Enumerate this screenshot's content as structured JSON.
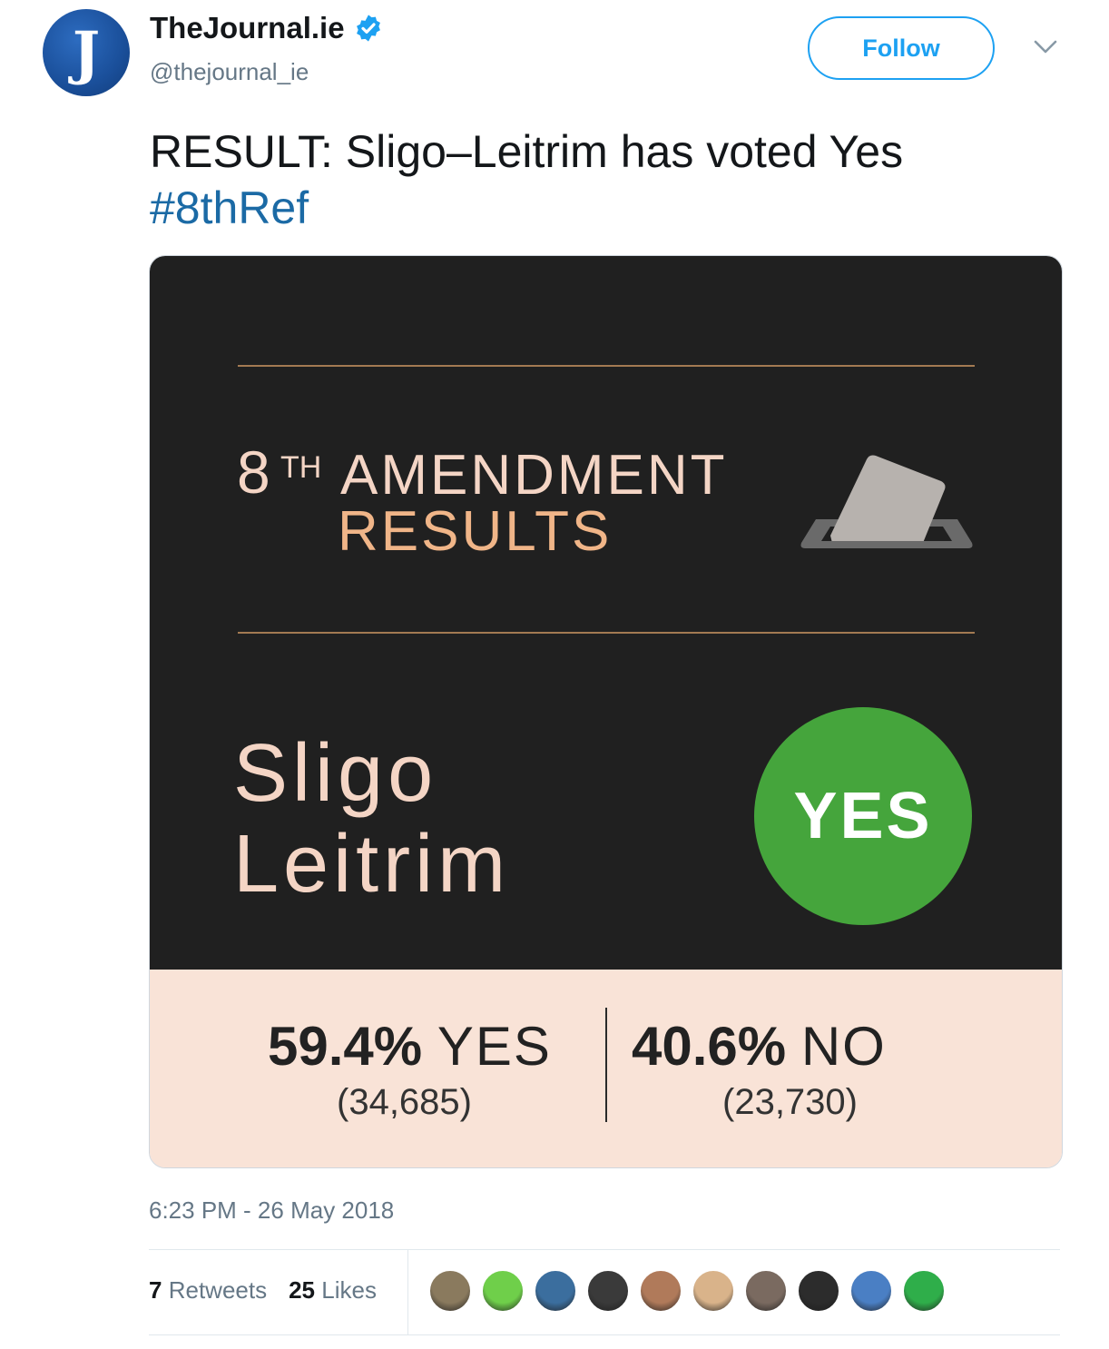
{
  "account": {
    "display_name": "TheJournal.ie",
    "handle": "@thejournal_ie",
    "avatar_letter": "J",
    "verified": true
  },
  "follow_button": {
    "label": "Follow"
  },
  "tweet": {
    "text": "RESULT: Sligo–Leitrim has voted Yes",
    "hashtag": "#8thRef",
    "timestamp": "6:23 PM - 26 May 2018"
  },
  "card": {
    "title_number": "8",
    "title_suffix": "TH",
    "title_line1": "AMENDMENT",
    "title_line2": "RESULTS",
    "constituency_line1": "Sligo",
    "constituency_line2": "Leitrim",
    "result_badge": "YES",
    "yes_percent": "59.4%",
    "yes_label": "YES",
    "yes_count": "(34,685)",
    "no_percent": "40.6%",
    "no_label": "NO",
    "no_count": "(23,730)",
    "colors": {
      "dark_background": "#202020",
      "light_background": "#f9e3d7",
      "yes_green": "#45a53c",
      "accent_orange": "#f0b588",
      "rule_gold": "#a37a52"
    }
  },
  "engagement": {
    "retweets_count": "7",
    "retweets_label": "Retweets",
    "likes_count": "25",
    "likes_label": "Likes",
    "liker_avatars": [
      {
        "icon": "liker-avatar-icon",
        "color": "#8a7a5e"
      },
      {
        "icon": "liker-avatar-icon",
        "color": "#6fcf4a"
      },
      {
        "icon": "liker-avatar-icon",
        "color": "#3b6e9e"
      },
      {
        "icon": "liker-avatar-icon",
        "color": "#3a3a3a"
      },
      {
        "icon": "liker-avatar-icon",
        "color": "#b07a5a"
      },
      {
        "icon": "liker-avatar-icon",
        "color": "#d9b38a"
      },
      {
        "icon": "liker-avatar-icon",
        "color": "#7a6a60"
      },
      {
        "icon": "liker-avatar-icon",
        "color": "#2c2c2c"
      },
      {
        "icon": "liker-avatar-icon",
        "color": "#4a7fc4"
      },
      {
        "icon": "liker-avatar-icon",
        "color": "#2fae4a"
      }
    ]
  }
}
